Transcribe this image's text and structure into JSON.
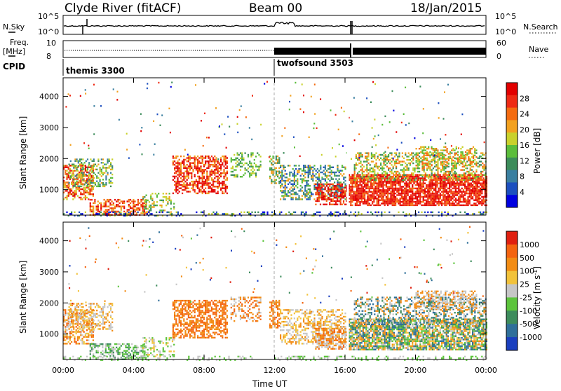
{
  "header": {
    "station": "Clyde River (fitACF)",
    "beam": "Beam 00",
    "date": "18/Jan/2015"
  },
  "panels": {
    "nsky_label": "N.Sky",
    "nsearch_label": "N.Search",
    "freq_label_line1": "Freq.",
    "freq_label_line2": "[MHz]",
    "nave_label": "Nave",
    "cpid_label": "CPID",
    "nsky_ticks": [
      "10^5",
      "10^0"
    ],
    "nsearch_ticks": [
      "10^5",
      "10^0"
    ],
    "freq_ticks": [
      "10",
      "8"
    ],
    "nave_ticks": [
      "60",
      "0"
    ]
  },
  "cpid": [
    {
      "name": "themis 3300",
      "start_hour": 0
    },
    {
      "name": "twofsound 3503",
      "start_hour": 12
    }
  ],
  "chart_data": [
    {
      "type": "heatmap",
      "quantity": "power",
      "ylabel": "Slant Range [km]",
      "ylim": [
        180,
        4600
      ],
      "yticks": [
        "1000",
        "2000",
        "3000",
        "4000"
      ],
      "xlim_hours": [
        0,
        24
      ],
      "colorbar_label": "Power [dB]",
      "colorbar_ticks": [
        "4",
        "8",
        "12",
        "16",
        "20",
        "24",
        "28"
      ],
      "colors": [
        "#0000e0",
        "#1c4fbf",
        "#3a7fa0",
        "#3c8c5a",
        "#5bbd3b",
        "#c9d12c",
        "#f2a11f",
        "#f46b10",
        "#ee2a14",
        "#e20000"
      ]
    },
    {
      "type": "heatmap",
      "quantity": "velocity",
      "ylabel": "Slant Range [km]",
      "ylim": [
        180,
        4600
      ],
      "yticks": [
        "1000",
        "2000",
        "3000",
        "4000"
      ],
      "xlim_hours": [
        0,
        24
      ],
      "colorbar_label": "Velocity [m s^-1]",
      "colorbar_ticks": [
        "1000",
        "500",
        "100",
        "25",
        "-25",
        "-100",
        "-500",
        "-1000"
      ],
      "colors": [
        "#1a3fbf",
        "#2f6f9a",
        "#3d8c5c",
        "#5cc43c",
        "#c6c6c6",
        "#f2c23a",
        "#f28c14",
        "#f46410",
        "#e02010"
      ]
    }
  ],
  "xaxis": {
    "label": "Time UT",
    "ticks": [
      "00:00",
      "04:00",
      "08:00",
      "12:00",
      "16:00",
      "20:00",
      "00:00"
    ]
  }
}
